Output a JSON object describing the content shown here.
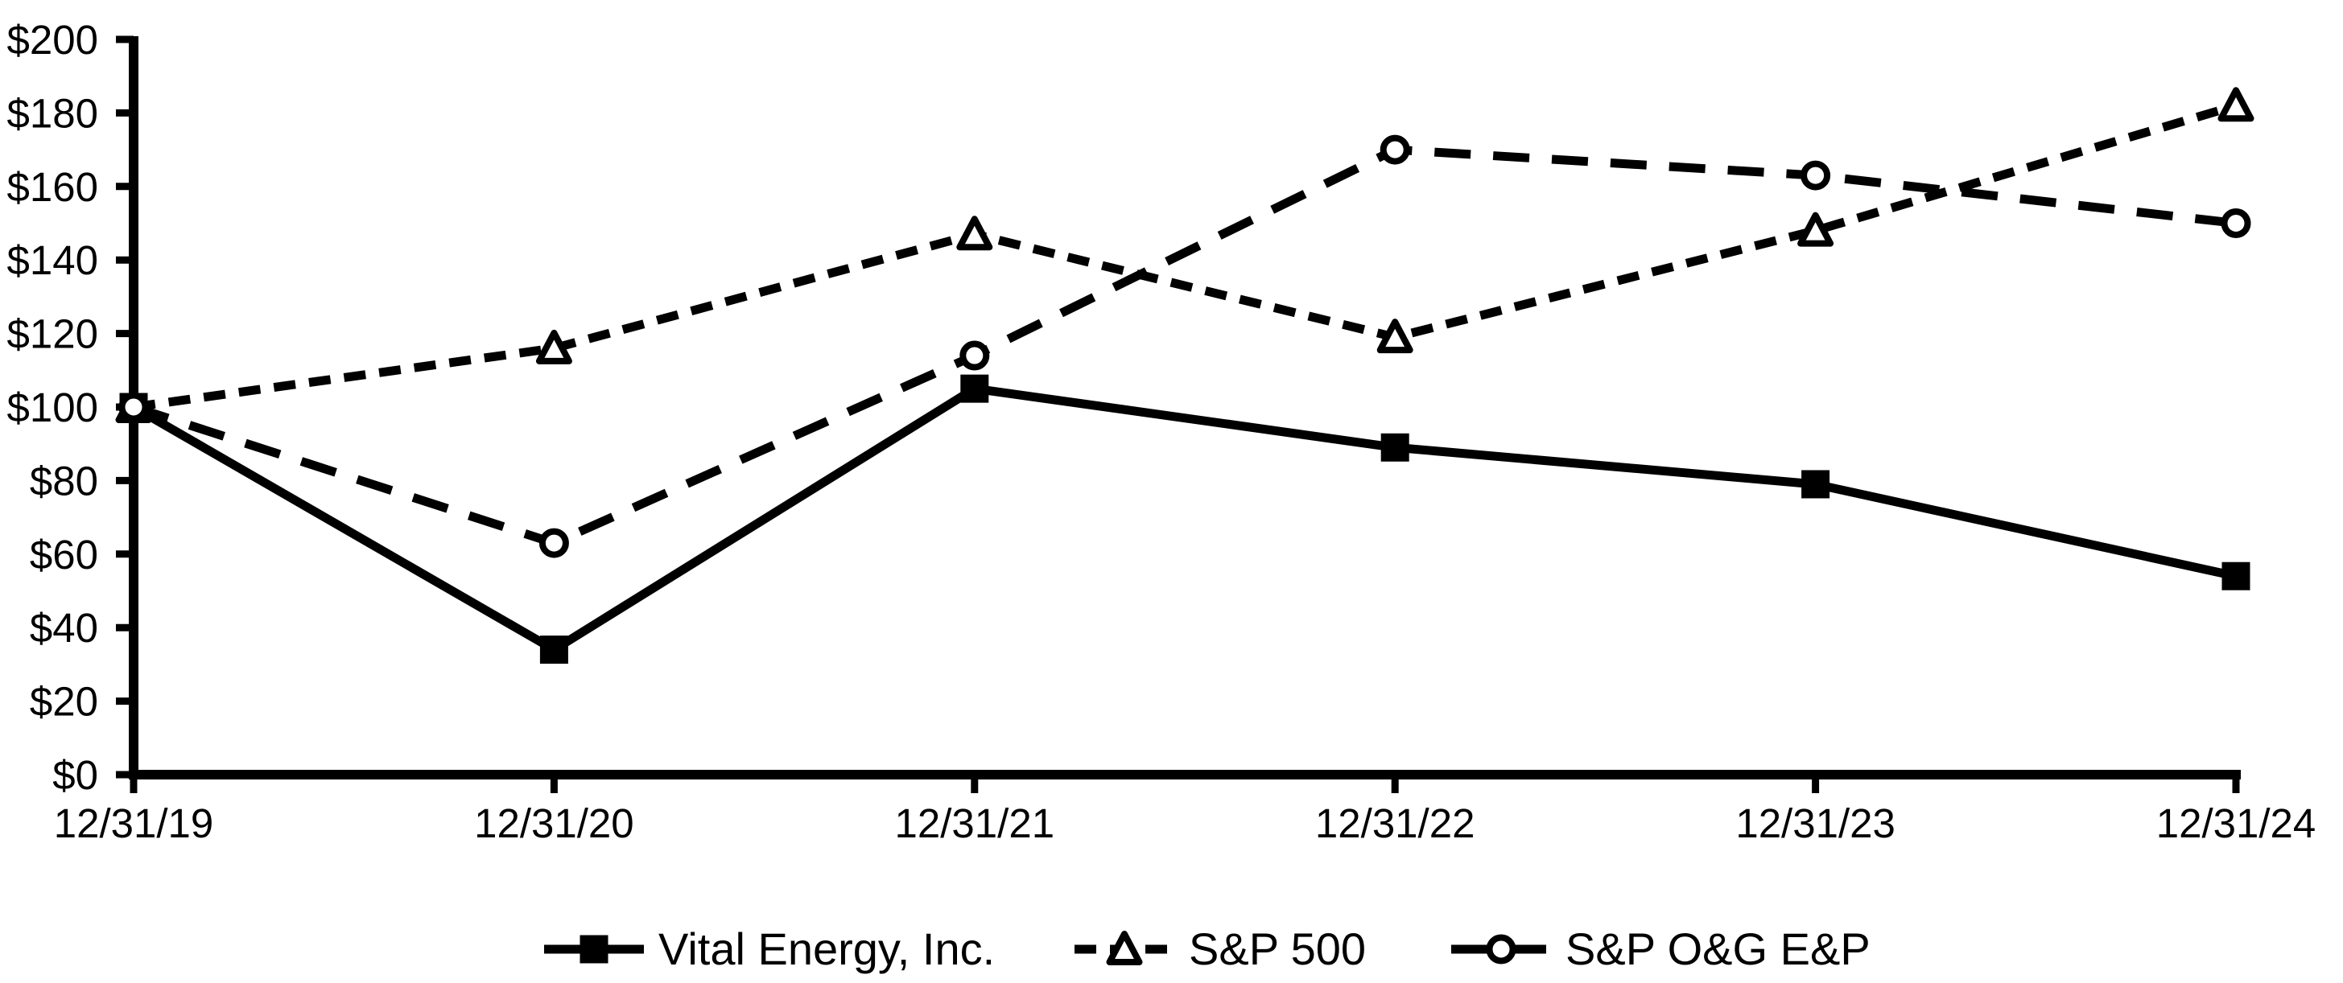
{
  "page": {
    "background": "#ffffff",
    "foreground": "#000000"
  },
  "chart_data": {
    "type": "line",
    "title": "",
    "xlabel": "",
    "ylabel": "",
    "categories": [
      "12/31/19",
      "12/31/20",
      "12/31/21",
      "12/31/22",
      "12/31/23",
      "12/31/24"
    ],
    "series": [
      {
        "name": "Vital Energy, Inc.",
        "values": [
          100,
          34,
          105,
          89,
          79,
          54
        ],
        "line_style": "solid",
        "marker": "filled-square",
        "color": "#000000"
      },
      {
        "name": "S&P 500",
        "values": [
          100,
          116,
          147,
          119,
          148,
          182
        ],
        "line_style": "short-dash",
        "marker": "open-triangle",
        "color": "#000000"
      },
      {
        "name": "S&P O&G E&P",
        "values": [
          100,
          63,
          114,
          170,
          163,
          150
        ],
        "line_style": "long-dash",
        "marker": "open-circle",
        "color": "#000000"
      }
    ],
    "ylim": [
      0,
      200
    ],
    "ytick_step": 20,
    "ytick_labels": [
      "$0",
      "$20",
      "$40",
      "$60",
      "$80",
      "$100",
      "$120",
      "$140",
      "$160",
      "$180",
      "$200"
    ],
    "xtick_labels": [
      "12/31/19",
      "12/31/20",
      "12/31/21",
      "12/31/22",
      "12/31/23",
      "12/31/24"
    ],
    "grid": false,
    "legend_position": "bottom",
    "background": "#ffffff"
  }
}
